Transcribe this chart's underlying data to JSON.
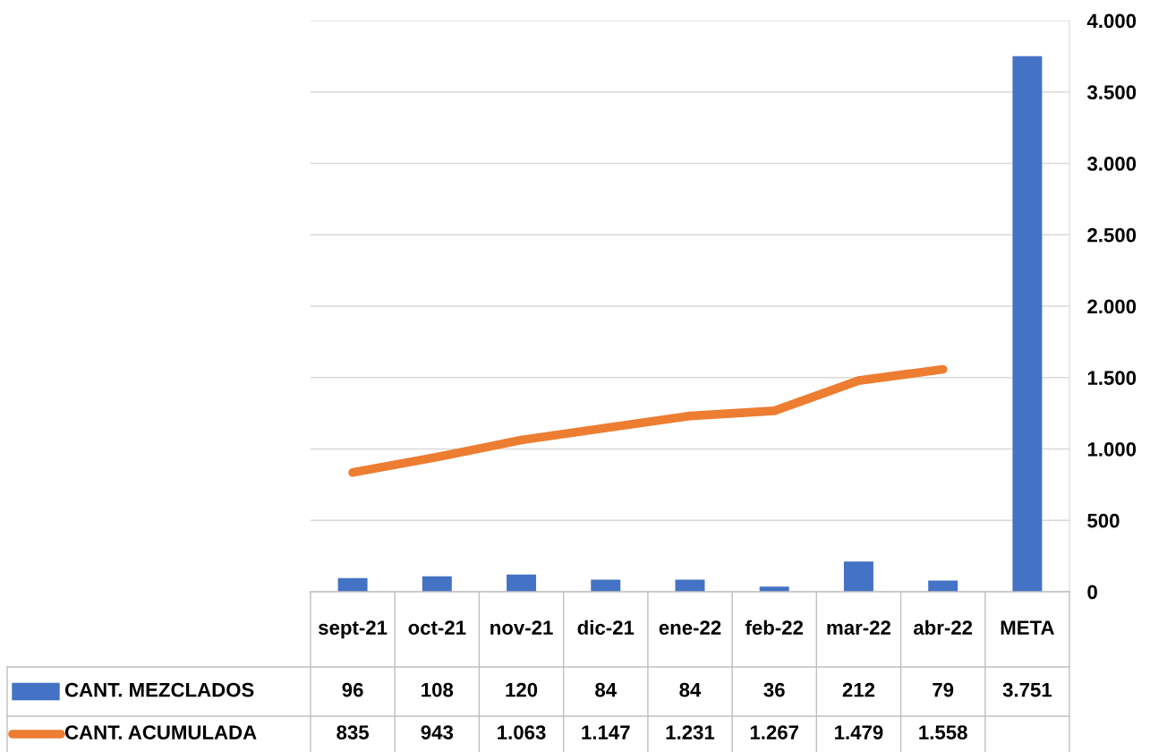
{
  "chart_data": {
    "type": "bar",
    "categories": [
      "sept-21",
      "oct-21",
      "nov-21",
      "dic-21",
      "ene-22",
      "feb-22",
      "mar-22",
      "abr-22",
      "META"
    ],
    "series": [
      {
        "name": "CANT. MEZCLADOS",
        "color": "#4472c4",
        "values": [
          96,
          108,
          120,
          84,
          84,
          36,
          212,
          79,
          3751
        ],
        "value_labels": [
          "96",
          "108",
          "120",
          "84",
          "84",
          "36",
          "212",
          "79",
          "3.751"
        ]
      },
      {
        "name": "CANT. ACUMULADA",
        "type": "line",
        "color": "#ed7d31",
        "values": [
          835,
          943,
          1063,
          1147,
          1231,
          1267,
          1479,
          1558,
          null
        ],
        "value_labels": [
          "835",
          "943",
          "1.063",
          "1.147",
          "1.231",
          "1.267",
          "1.479",
          "1.558",
          null
        ]
      }
    ],
    "ylim": [
      0,
      4000
    ],
    "yticks": [
      {
        "value": 0,
        "label": "0"
      },
      {
        "value": 500,
        "label": "500"
      },
      {
        "value": 1000,
        "label": "1.000"
      },
      {
        "value": 1500,
        "label": "1.500"
      },
      {
        "value": 2000,
        "label": "2.000"
      },
      {
        "value": 2500,
        "label": "2.500"
      },
      {
        "value": 3000,
        "label": "3.000"
      },
      {
        "value": 3500,
        "label": "3.500"
      },
      {
        "value": 4000,
        "label": "4.000"
      }
    ],
    "grid": "y",
    "legend": "bottom left",
    "marker": "none",
    "line_style": "solid"
  }
}
